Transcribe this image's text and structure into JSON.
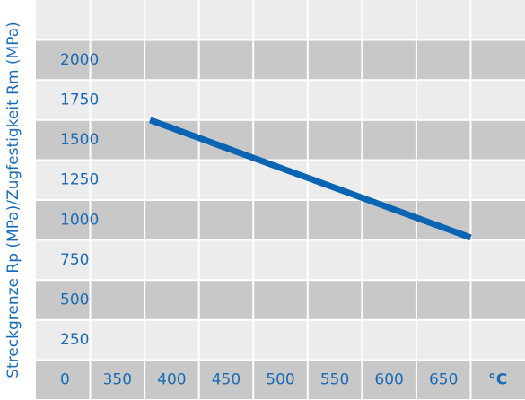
{
  "chart_data": {
    "type": "line",
    "y_label": "Streckgrenze Rp (MPa)/Zugfestigkeit Rm (MPa)",
    "x_unit": "°C",
    "x": [
      380,
      675
    ],
    "series": [
      {
        "color": "#0a64b4",
        "values": [
          1625,
          890
        ]
      }
    ],
    "xlim": [
      275,
      725
    ],
    "xticks": [
      350,
      400,
      450,
      500,
      550,
      600,
      650
    ],
    "ylim": [
      -125,
      2375
    ],
    "yticks": [
      0,
      250,
      500,
      750,
      1000,
      1250,
      1500,
      1750,
      2000
    ],
    "grid": true,
    "band_colors": [
      "#c8c8c8",
      "#ececec"
    ]
  }
}
